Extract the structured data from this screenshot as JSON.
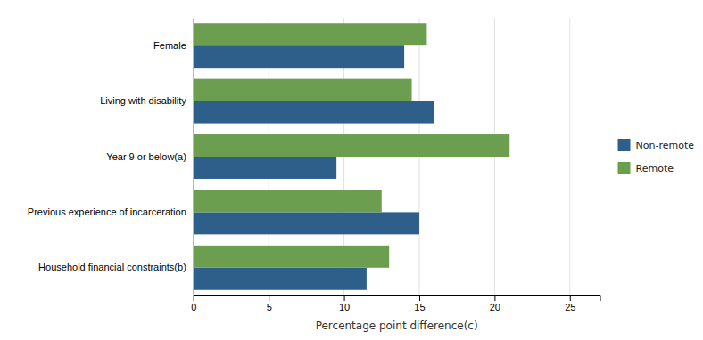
{
  "chart_data": {
    "type": "bar",
    "orientation": "horizontal",
    "categories": [
      "Female",
      "Living with disability",
      "Year 9 or below(a)",
      "Previous experience of incarceration",
      "Household financial constraints(b)"
    ],
    "series": [
      {
        "name": "Non-remote",
        "color": "#2E5F8A",
        "values": [
          14.0,
          16.0,
          9.5,
          15.0,
          11.5
        ]
      },
      {
        "name": "Remote",
        "color": "#6B9E4E",
        "values": [
          15.5,
          14.5,
          21.0,
          12.5,
          13.0
        ]
      }
    ],
    "xlabel": "Percentage point difference(c)",
    "xlim": [
      0,
      27
    ],
    "xticks": [
      0,
      5,
      10,
      15,
      20,
      25
    ],
    "grid": true,
    "legend": "right"
  }
}
